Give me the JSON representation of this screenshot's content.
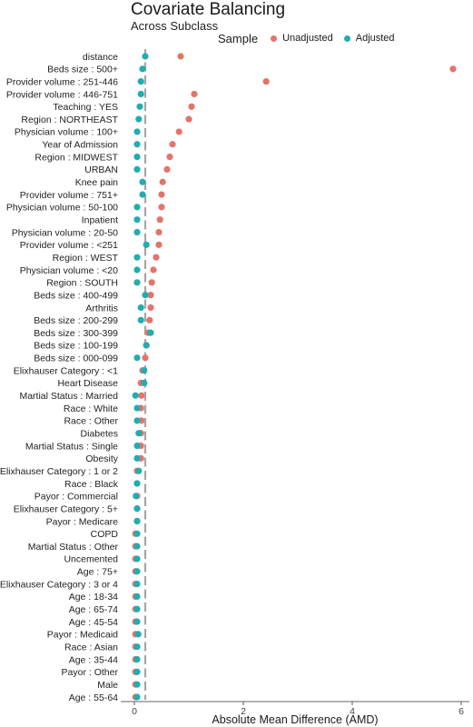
{
  "chart_data": {
    "type": "scatter",
    "title": "Covariate Balancing",
    "subtitle": "Across Subclass",
    "xlabel": "Absolute Mean Difference (AMD)",
    "ylabel": "",
    "xlim": [
      -0.25,
      6.15
    ],
    "xticks": [
      0,
      2,
      4,
      6
    ],
    "xtick_labels": [
      "0",
      "2",
      "4",
      "6"
    ],
    "threshold": 0.2,
    "legend": {
      "title": "Sample",
      "placement": "top",
      "entries": [
        {
          "label": "Unadjusted",
          "color": "#E5736A"
        },
        {
          "label": "Adjusted",
          "color": "#21ADB0"
        }
      ]
    },
    "colors": {
      "unadjusted": "#E5736A",
      "adjusted": "#21ADB0",
      "threshold_line": "#A6A6A6"
    },
    "categories": [
      "distance",
      "Beds size : 500+",
      "Provider volume : 251-446",
      "Provider volume : 446-751",
      "Teaching : YES",
      "Region : NORTHEAST",
      "Physician volume : 100+",
      "Year of Admission",
      "Region : MIDWEST",
      "URBAN",
      "Knee pain",
      "Provider volume : 751+",
      "Physician volume : 50-100",
      "Inpatient",
      "Physician volume : 20-50",
      "Provider volume : <251",
      "Region : WEST",
      "Physician volume : <20",
      "Region : SOUTH",
      "Beds size : 400-499",
      "Arthritis",
      "Beds size : 200-299",
      "Beds size : 300-399",
      "Beds size : 100-199",
      "Beds size : 000-099",
      "Elixhauser Category : <1",
      "Heart Disease",
      "Martial Status : Married",
      "Race : White",
      "Race : Other",
      "Diabetes",
      "Martial Status : Single",
      "Obesity",
      "Elixhauser Category : 1 or 2",
      "Race : Black",
      "Payor : Commercial",
      "Elixhauser Category : 5+",
      "Payor : Medicare",
      "COPD",
      "Martial Status : Other",
      "Uncemented",
      "Age : 75+",
      "Elixhauser Category : 3 or 4",
      "Age : 18-34",
      "Age : 65-74",
      "Age : 45-54",
      "Payor : Medicaid",
      "Race : Asian",
      "Age : 35-44",
      "Payor : Other",
      "Male",
      "Age : 55-64"
    ],
    "series": [
      {
        "name": "Unadjusted",
        "values": [
          0.85,
          5.85,
          2.42,
          1.1,
          1.05,
          1.0,
          0.82,
          0.7,
          0.65,
          0.6,
          0.52,
          0.5,
          0.5,
          0.47,
          0.45,
          0.45,
          0.4,
          0.35,
          0.32,
          0.3,
          0.3,
          0.28,
          0.25,
          0.22,
          0.2,
          0.15,
          0.12,
          0.13,
          0.12,
          0.13,
          0.12,
          0.12,
          0.12,
          0.05,
          0.05,
          0.05,
          0.05,
          0.05,
          0.02,
          0.02,
          0.02,
          0.02,
          0.02,
          0.02,
          0.02,
          0.02,
          0.02,
          0.02,
          0.02,
          0.02,
          0.02,
          0.02
        ]
      },
      {
        "name": "Adjusted",
        "values": [
          0.2,
          0.15,
          0.12,
          0.12,
          0.1,
          0.08,
          0.05,
          0.05,
          0.05,
          0.05,
          0.15,
          0.15,
          0.05,
          0.05,
          0.05,
          0.22,
          0.05,
          0.05,
          0.05,
          0.2,
          0.12,
          0.12,
          0.3,
          0.22,
          0.05,
          0.18,
          0.18,
          0.02,
          0.05,
          0.05,
          0.08,
          0.05,
          0.05,
          0.08,
          0.05,
          0.03,
          0.05,
          0.05,
          0.05,
          0.05,
          0.05,
          0.05,
          0.05,
          0.05,
          0.05,
          0.05,
          0.07,
          0.05,
          0.05,
          0.05,
          0.05,
          0.05
        ]
      }
    ]
  }
}
